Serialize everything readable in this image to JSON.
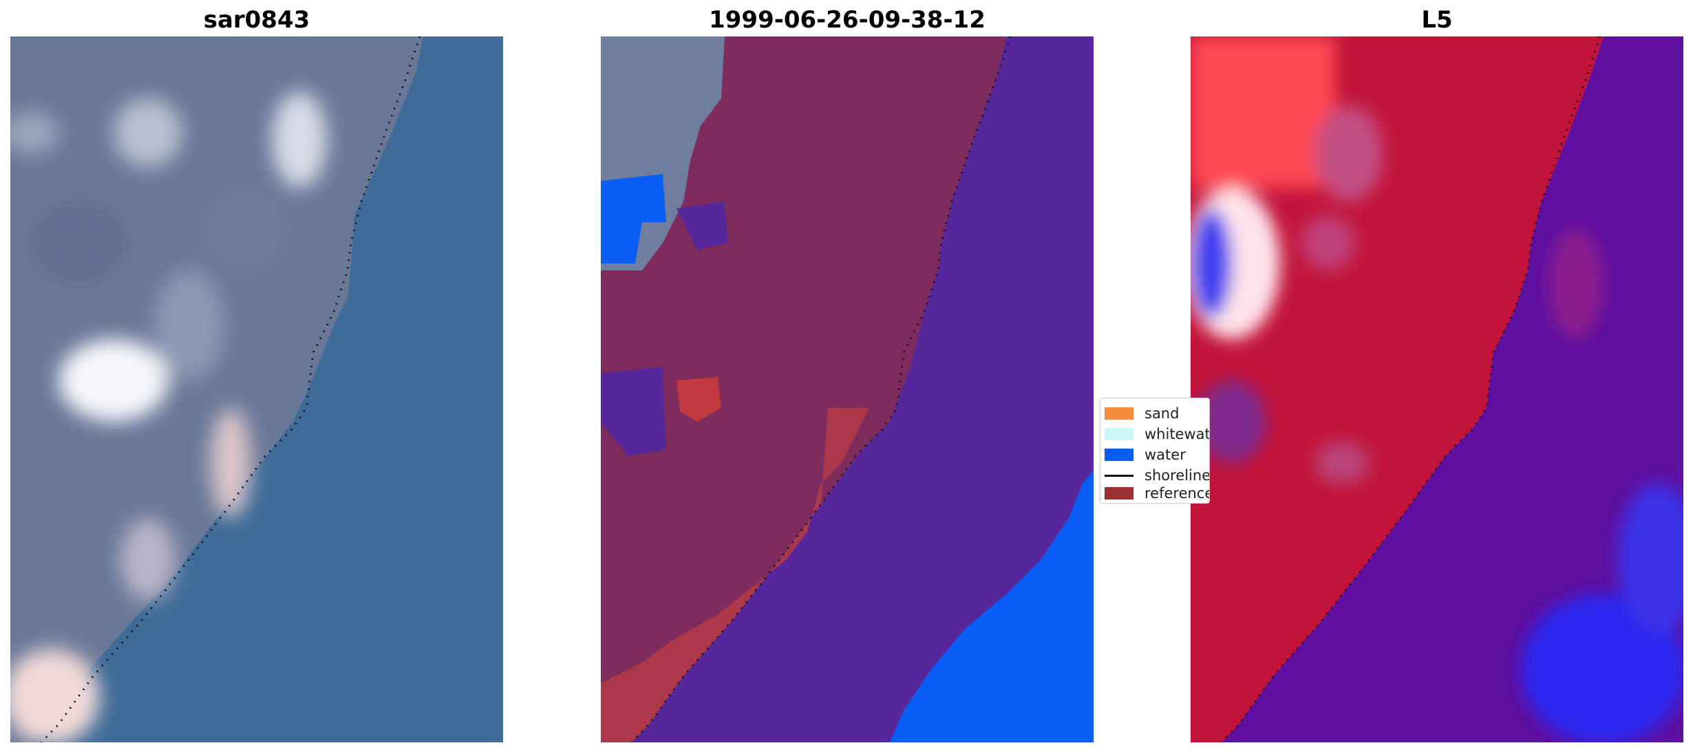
{
  "panels": [
    {
      "title": "sar0843"
    },
    {
      "title": "1999-06-26-09-38-12"
    },
    {
      "title": "L5"
    }
  ],
  "legend": {
    "items": [
      {
        "label": "sand",
        "color": "#f58a3b",
        "kind": "patch"
      },
      {
        "label": "whitewater",
        "color": "#ccf7f7",
        "kind": "patch"
      },
      {
        "label": "water",
        "color": "#0a5ef5",
        "kind": "patch"
      },
      {
        "label": "shoreline",
        "color": "#111111",
        "kind": "line"
      },
      {
        "label": "reference",
        "color": "#9b3030",
        "kind": "patch"
      }
    ]
  },
  "colors": {
    "sea_rgb": "#3d6d99",
    "land_rgb": "#6f7e9e",
    "class_purple": "#55279a",
    "class_land": "#7c2a5c",
    "class_water": "#0a5ef5",
    "index_land": "#c2143a",
    "index_water": "#5e0f9e",
    "index_blue": "#2a25f0"
  }
}
